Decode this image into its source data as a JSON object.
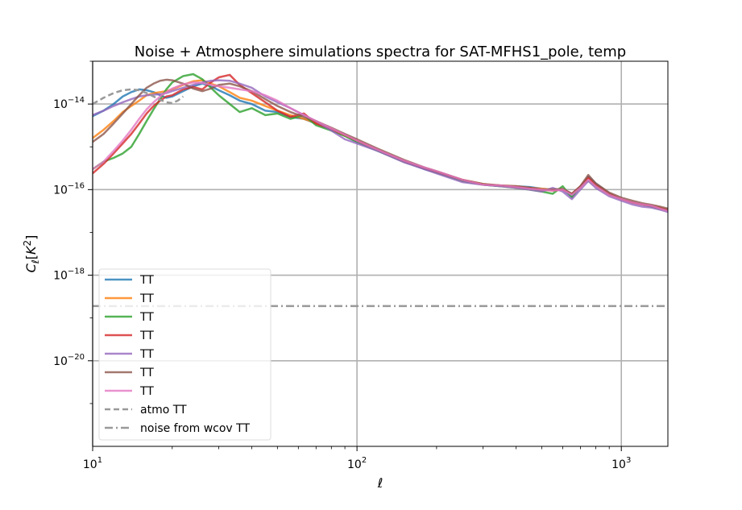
{
  "chart_data": {
    "type": "line",
    "title": "Noise + Atmosphere simulations spectra for SAT-MFHS1_pole, temp",
    "xlabel": "ℓ",
    "ylabel": "C_ℓ[K²]",
    "xscale": "log",
    "yscale": "log",
    "xlim": [
      10,
      1500
    ],
    "ylim": [
      1e-22,
      1e-13
    ],
    "grid": "major",
    "legend_position": "lower-left",
    "x_tick_labels": [
      {
        "value": 10,
        "base": "10",
        "exp": "1"
      },
      {
        "value": 100,
        "base": "10",
        "exp": "2"
      },
      {
        "value": 1000,
        "base": "10",
        "exp": "3"
      }
    ],
    "y_tick_labels": [
      {
        "value": 1e-20,
        "base": "10",
        "exp": "−20"
      },
      {
        "value": 1e-18,
        "base": "10",
        "exp": "−18"
      },
      {
        "value": 1e-16,
        "base": "10",
        "exp": "−16"
      },
      {
        "value": 1e-14,
        "base": "10",
        "exp": "−14"
      }
    ],
    "series": [
      {
        "name": "TT",
        "color": "#1f77b4",
        "style": "solid",
        "x": [
          10,
          11,
          12,
          13,
          14,
          15,
          16,
          17,
          18,
          19,
          20,
          22,
          24,
          26,
          28,
          30,
          33,
          36,
          40,
          45,
          50,
          56,
          63,
          70,
          80,
          90,
          100,
          120,
          150,
          180,
          200,
          250,
          300,
          350,
          400,
          450,
          500,
          550,
          600,
          650,
          700,
          750,
          800,
          900,
          1000,
          1100,
          1200,
          1300,
          1400,
          1500
        ],
        "y": [
          5.2e-15,
          7e-15,
          1e-14,
          1.5e-14,
          1.9e-14,
          2.2e-14,
          2.1e-14,
          1.9e-14,
          1.6e-14,
          1.4e-14,
          1.5e-14,
          2e-14,
          2.6e-14,
          3e-14,
          2.6e-14,
          2.1e-14,
          1.6e-14,
          1.2e-14,
          1e-14,
          7e-15,
          6.5e-15,
          5e-15,
          4.5e-15,
          3.5e-15,
          2.5e-15,
          1.8e-15,
          1.3e-15,
          8e-16,
          4.6e-16,
          3e-16,
          2.5e-16,
          1.6e-16,
          1.3e-16,
          1.2e-16,
          1.2e-16,
          1.15e-16,
          1.05e-16,
          1e-16,
          1e-16,
          7e-17,
          1.1e-16,
          2e-16,
          1.4e-16,
          8e-17,
          6e-17,
          5e-17,
          4.5e-17,
          4e-17,
          3.6e-17,
          3.2e-17
        ]
      },
      {
        "name": "TT",
        "color": "#ff7f0e",
        "style": "solid",
        "x": [
          10,
          11,
          12,
          13,
          14,
          15,
          16,
          17,
          18,
          19,
          20,
          22,
          24,
          26,
          28,
          30,
          33,
          36,
          40,
          45,
          50,
          56,
          63,
          70,
          80,
          90,
          100,
          120,
          150,
          180,
          200,
          250,
          300,
          350,
          400,
          450,
          500,
          550,
          600,
          650,
          700,
          750,
          800,
          900,
          1000,
          1100,
          1200,
          1300,
          1400,
          1500
        ],
        "y": [
          1.6e-15,
          2.5e-15,
          4e-15,
          6.5e-15,
          9e-15,
          1.2e-14,
          1.6e-14,
          1.8e-14,
          1.9e-14,
          2e-14,
          2.2e-14,
          2.8e-14,
          3.4e-14,
          3.6e-14,
          3e-14,
          2.6e-14,
          1.9e-14,
          1.4e-14,
          1.2e-14,
          9e-15,
          7e-15,
          5.5e-15,
          4.5e-15,
          3.6e-15,
          2.6e-15,
          1.8e-15,
          1.4e-15,
          8.5e-16,
          4.8e-16,
          3.2e-16,
          2.6e-16,
          1.7e-16,
          1.35e-16,
          1.25e-16,
          1.2e-16,
          1.1e-16,
          1.05e-16,
          1e-16,
          1e-16,
          8e-17,
          1.1e-16,
          1.8e-16,
          1.3e-16,
          8e-17,
          6e-17,
          5e-17,
          4.5e-17,
          4.2e-17,
          3.8e-17,
          3.4e-17
        ]
      },
      {
        "name": "TT",
        "color": "#2ca02c",
        "style": "solid",
        "x": [
          10,
          11,
          12,
          13,
          14,
          15,
          16,
          17,
          18,
          19,
          20,
          22,
          24,
          26,
          28,
          30,
          33,
          36,
          40,
          45,
          50,
          56,
          63,
          70,
          80,
          90,
          100,
          120,
          150,
          180,
          200,
          250,
          300,
          350,
          400,
          450,
          500,
          550,
          600,
          650,
          700,
          750,
          800,
          900,
          1000,
          1100,
          1200,
          1300,
          1400,
          1500
        ],
        "y": [
          3e-16,
          4.5e-16,
          5.5e-16,
          7e-16,
          1e-15,
          2e-15,
          4e-15,
          7.5e-15,
          1.3e-14,
          2.2e-14,
          3.2e-14,
          4.5e-14,
          5e-14,
          3.8e-14,
          2.4e-14,
          1.6e-14,
          1e-14,
          6.5e-15,
          8e-15,
          5.5e-15,
          6e-15,
          4.5e-15,
          5.5e-15,
          3.2e-15,
          2.4e-15,
          1.8e-15,
          1.3e-15,
          8e-16,
          4.5e-16,
          3.1e-16,
          2.5e-16,
          1.6e-16,
          1.3e-16,
          1.2e-16,
          1.1e-16,
          1e-16,
          9e-17,
          8e-17,
          1.2e-16,
          6.5e-17,
          1.2e-16,
          1.6e-16,
          1.2e-16,
          7.5e-17,
          6e-17,
          5e-17,
          4.5e-17,
          4e-17,
          3.5e-17,
          3.3e-17
        ]
      },
      {
        "name": "TT",
        "color": "#d62728",
        "style": "solid",
        "x": [
          10,
          11,
          12,
          13,
          14,
          15,
          16,
          17,
          18,
          19,
          20,
          22,
          24,
          26,
          28,
          30,
          33,
          36,
          40,
          45,
          50,
          56,
          63,
          70,
          80,
          90,
          100,
          120,
          150,
          180,
          200,
          250,
          300,
          350,
          400,
          450,
          500,
          550,
          600,
          650,
          700,
          750,
          800,
          900,
          1000,
          1100,
          1200,
          1300,
          1400,
          1500
        ],
        "y": [
          2.4e-16,
          4e-16,
          7e-16,
          1.2e-15,
          2e-15,
          3.5e-15,
          6e-15,
          9e-15,
          1.2e-14,
          1.5e-14,
          1.6e-14,
          2.2e-14,
          2.5e-14,
          2.2e-14,
          3.2e-14,
          4.2e-14,
          4.8e-14,
          2.8e-14,
          1.8e-14,
          1.1e-14,
          7e-15,
          5e-15,
          6e-15,
          3.5e-15,
          2.6e-15,
          1.9e-15,
          1.4e-15,
          8.5e-16,
          4.7e-16,
          3.1e-16,
          2.6e-16,
          1.7e-16,
          1.3e-16,
          1.25e-16,
          1.15e-16,
          1.1e-16,
          1e-16,
          9.5e-17,
          1e-16,
          8e-17,
          1.2e-16,
          1.9e-16,
          1.3e-16,
          8e-17,
          6e-17,
          5e-17,
          4.5e-17,
          4.2e-17,
          3.7e-17,
          3.3e-17
        ]
      },
      {
        "name": "TT",
        "color": "#9467bd",
        "style": "solid",
        "x": [
          10,
          11,
          12,
          13,
          14,
          15,
          16,
          17,
          18,
          19,
          20,
          22,
          24,
          26,
          28,
          30,
          33,
          36,
          40,
          45,
          50,
          56,
          63,
          70,
          80,
          90,
          100,
          120,
          150,
          180,
          200,
          250,
          300,
          350,
          400,
          450,
          500,
          550,
          600,
          650,
          700,
          750,
          800,
          900,
          1000,
          1100,
          1200,
          1300,
          1400,
          1500
        ],
        "y": [
          5.5e-15,
          7e-15,
          9e-15,
          1.1e-14,
          1.3e-14,
          1.5e-14,
          1.6e-14,
          1.65e-14,
          1.7e-14,
          1.8e-14,
          2e-14,
          2.4e-14,
          2.8e-14,
          3.2e-14,
          3.5e-14,
          3.6e-14,
          3.5e-14,
          3e-14,
          2.4e-14,
          1.5e-14,
          1.1e-14,
          8e-15,
          5.5e-15,
          4e-15,
          2.4e-15,
          1.5e-15,
          1.2e-15,
          8e-16,
          4.4e-16,
          3e-16,
          2.4e-16,
          1.5e-16,
          1.3e-16,
          1.2e-16,
          1.1e-16,
          1e-16,
          9e-17,
          1.1e-16,
          9e-17,
          6e-17,
          1e-16,
          1.6e-16,
          1.1e-16,
          7e-17,
          5.5e-17,
          4.5e-17,
          4e-17,
          3.8e-17,
          3.4e-17,
          3e-17
        ]
      },
      {
        "name": "TT",
        "color": "#8c564b",
        "style": "solid",
        "x": [
          10,
          11,
          12,
          13,
          14,
          15,
          16,
          17,
          18,
          19,
          20,
          22,
          24,
          26,
          28,
          30,
          33,
          36,
          40,
          45,
          50,
          56,
          63,
          70,
          80,
          90,
          100,
          120,
          150,
          180,
          200,
          250,
          300,
          350,
          400,
          450,
          500,
          550,
          600,
          650,
          700,
          750,
          800,
          900,
          1000,
          1100,
          1200,
          1300,
          1400,
          1500
        ],
        "y": [
          1.3e-15,
          2e-15,
          3.5e-15,
          6e-15,
          1e-14,
          1.6e-14,
          2.4e-14,
          3e-14,
          3.5e-14,
          3.7e-14,
          3.6e-14,
          3e-14,
          2.3e-14,
          2e-14,
          2.3e-14,
          2.8e-14,
          3e-14,
          2.6e-14,
          2e-14,
          1.3e-14,
          9e-15,
          6.5e-15,
          5e-15,
          4e-15,
          2.8e-15,
          2e-15,
          1.5e-15,
          9e-16,
          5e-16,
          3.3e-16,
          2.7e-16,
          1.7e-16,
          1.35e-16,
          1.25e-16,
          1.2e-16,
          1.1e-16,
          1e-16,
          1e-16,
          1.05e-16,
          8e-17,
          1.2e-16,
          2.2e-16,
          1.4e-16,
          8.5e-17,
          6.5e-17,
          5.5e-17,
          4.8e-17,
          4.4e-17,
          4e-17,
          3.6e-17
        ]
      },
      {
        "name": "TT",
        "color": "#e377c2",
        "style": "solid",
        "x": [
          10,
          11,
          12,
          13,
          14,
          15,
          16,
          17,
          18,
          19,
          20,
          22,
          24,
          26,
          28,
          30,
          33,
          36,
          40,
          45,
          50,
          56,
          63,
          70,
          80,
          90,
          100,
          120,
          150,
          180,
          200,
          250,
          300,
          350,
          400,
          450,
          500,
          550,
          600,
          650,
          700,
          750,
          800,
          900,
          1000,
          1100,
          1200,
          1300,
          1400,
          1500
        ],
        "y": [
          3e-16,
          4.5e-16,
          8e-16,
          1.4e-15,
          2.5e-15,
          4.5e-15,
          7.5e-15,
          1.1e-14,
          1.5e-14,
          1.9e-14,
          2.3e-14,
          2.9e-14,
          3.2e-14,
          3.1e-14,
          2.8e-14,
          2.6e-14,
          2.4e-14,
          2.2e-14,
          2e-14,
          1.6e-14,
          1.2e-14,
          8e-15,
          5.5e-15,
          4e-15,
          2.7e-15,
          1.9e-15,
          1.4e-15,
          8.5e-16,
          4.8e-16,
          3.3e-16,
          2.7e-16,
          1.7e-16,
          1.3e-16,
          1.25e-16,
          1.15e-16,
          1.05e-16,
          1e-16,
          9.5e-17,
          1e-16,
          7.5e-17,
          1.1e-16,
          1.7e-16,
          1.2e-16,
          7.5e-17,
          6e-17,
          5e-17,
          4.5e-17,
          4.2e-17,
          3.6e-17,
          3.2e-17
        ]
      },
      {
        "name": "atmo TT",
        "color": "#999999",
        "style": "dashed",
        "x": [
          10,
          11,
          12,
          13,
          14,
          15,
          16,
          17,
          18,
          19,
          20,
          21,
          22
        ],
        "y": [
          1e-14,
          1.4e-14,
          1.8e-14,
          2.1e-14,
          2.2e-14,
          2.1e-14,
          1.8e-14,
          1.5e-14,
          1.25e-14,
          1.1e-14,
          1.05e-14,
          1.2e-14,
          1.5e-14
        ]
      },
      {
        "name": "noise from wcov TT",
        "color": "#999999",
        "style": "dashdot",
        "x": [
          10,
          1500
        ],
        "y": [
          1.9e-19,
          1.9e-19
        ]
      }
    ]
  }
}
